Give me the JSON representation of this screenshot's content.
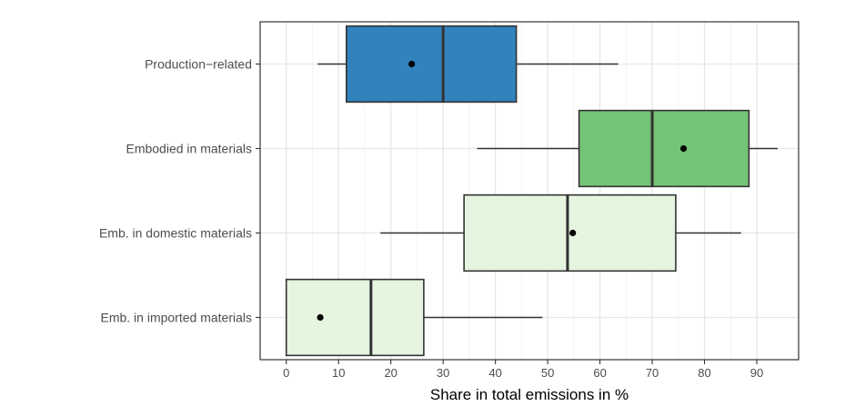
{
  "chart_data": {
    "type": "boxplot",
    "orientation": "horizontal",
    "title": "",
    "xlabel": "Share in total emissions in %",
    "ylabel": "",
    "xlim": [
      -5,
      98
    ],
    "xticks": [
      0,
      10,
      20,
      30,
      40,
      50,
      60,
      70,
      80,
      90
    ],
    "grid": true,
    "categories": [
      "Production−related",
      "Embodied in materials",
      "Emb. in domestic materials",
      "Emb. in imported materials"
    ],
    "boxes": [
      {
        "category": "Production−related",
        "whisker_low": 6,
        "q1": 11.5,
        "median": 30,
        "q3": 44,
        "whisker_high": 63.5,
        "mean": 24,
        "fill": "#3182bd"
      },
      {
        "category": "Embodied in materials",
        "whisker_low": 36.5,
        "q1": 56,
        "median": 70,
        "q3": 88.5,
        "whisker_high": 94,
        "mean": 76,
        "fill": "#74c476"
      },
      {
        "category": "Emb. in domestic materials",
        "whisker_low": 18,
        "q1": 34,
        "median": 53.8,
        "q3": 74.5,
        "whisker_high": 87,
        "mean": 54.8,
        "fill": "#e5f5e0"
      },
      {
        "category": "Emb. in imported materials",
        "whisker_low": 0,
        "q1": 0,
        "median": 16.2,
        "q3": 26.3,
        "whisker_high": 49,
        "mean": 6.5,
        "fill": "#e5f5e0"
      }
    ]
  }
}
